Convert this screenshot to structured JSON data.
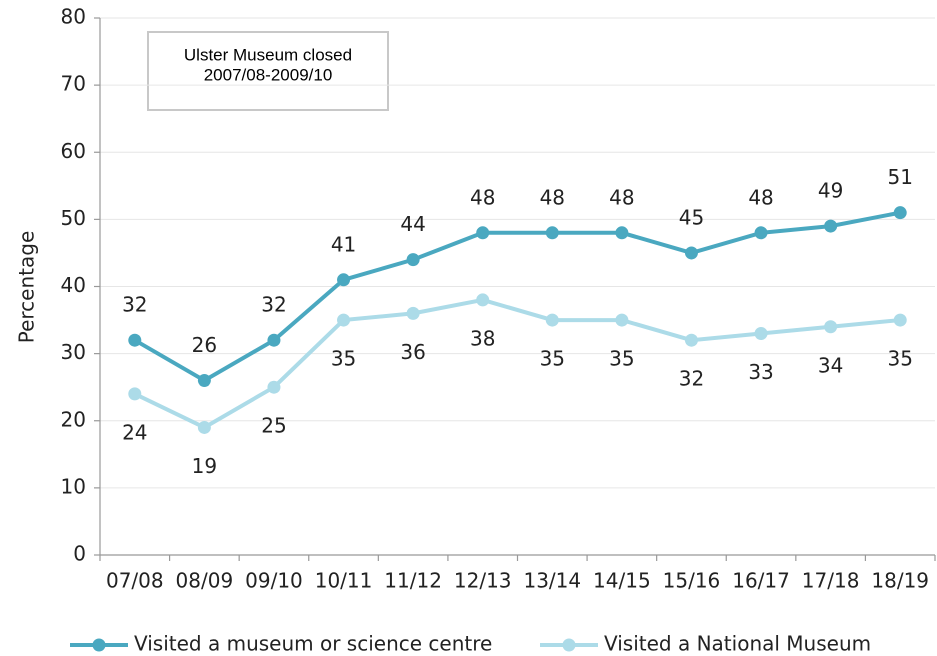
{
  "chart_data": {
    "type": "line",
    "y_label": "Percentage",
    "annotation": [
      "Ulster Museum closed",
      "2007/08-2009/10"
    ],
    "categories": [
      "07/08",
      "08/09",
      "09/10",
      "10/11",
      "11/12",
      "12/13",
      "13/14",
      "14/15",
      "15/16",
      "16/17",
      "17/18",
      "18/19"
    ],
    "series": [
      {
        "name": "Visited a museum or science centre",
        "color": "#4aa8c0",
        "values": [
          32,
          26,
          32,
          41,
          44,
          48,
          48,
          48,
          45,
          48,
          49,
          51
        ]
      },
      {
        "name": "Visited a National Museum",
        "color": "#acdbe8",
        "values": [
          24,
          19,
          25,
          35,
          36,
          38,
          35,
          35,
          32,
          33,
          34,
          35
        ]
      }
    ],
    "ylim": [
      0,
      80
    ],
    "yticks": [
      0,
      10,
      20,
      30,
      40,
      50,
      60,
      70,
      80
    ],
    "grid": true,
    "legend": "bottom"
  }
}
